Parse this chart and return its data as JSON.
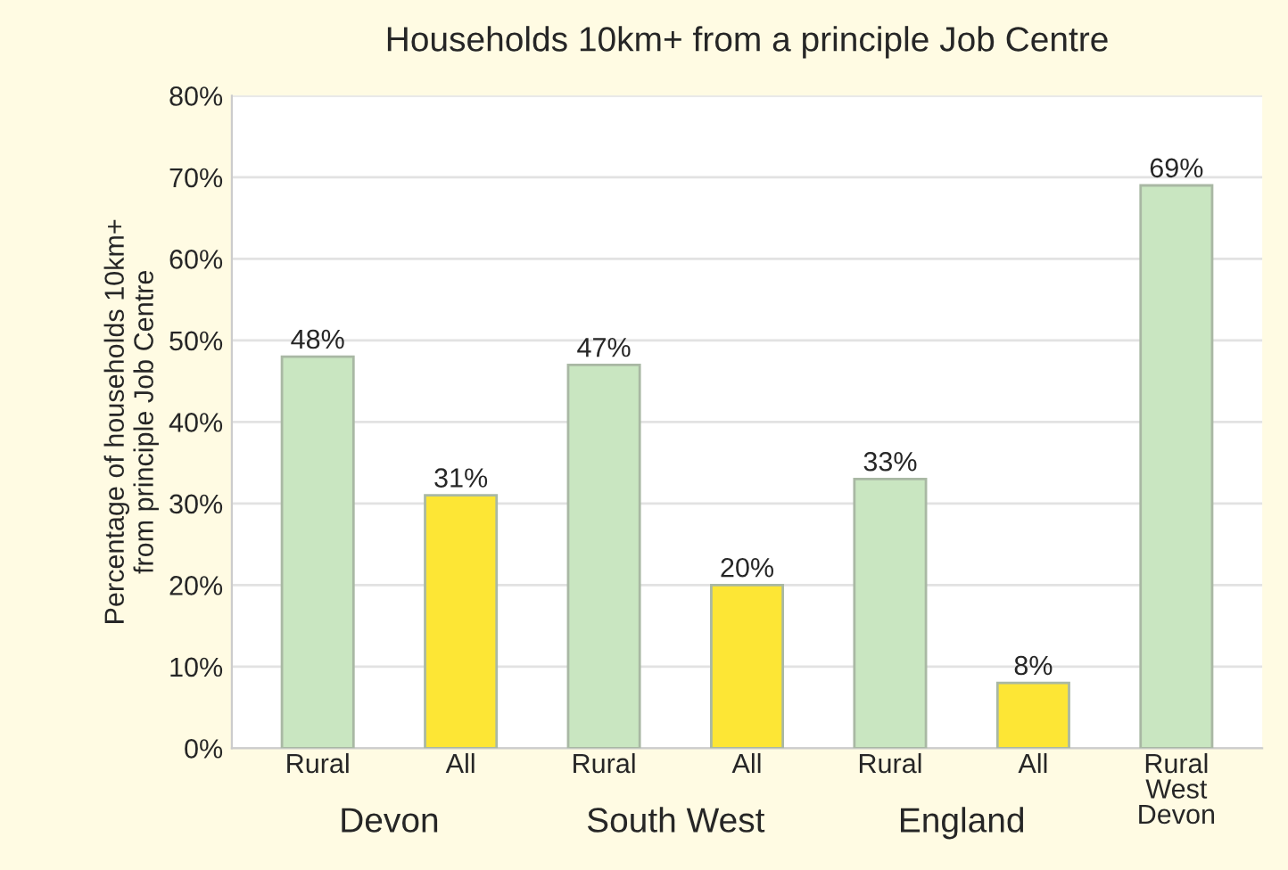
{
  "chart_data": {
    "type": "bar",
    "title": "Households 10km+ from a principle Job Centre",
    "ylabel": "Percentage of households 10km+\nfrom principle Job Centre",
    "categories": [
      "Rural",
      "All",
      "Rural",
      "All",
      "Rural",
      "All",
      "Rural\nWest\nDevon"
    ],
    "values": [
      48,
      31,
      47,
      20,
      33,
      8,
      69
    ],
    "colors": [
      "#c9e6c1",
      "#fde635",
      "#c9e6c1",
      "#fde635",
      "#c9e6c1",
      "#fde635",
      "#c9e6c1"
    ],
    "value_labels": [
      "48%",
      "31%",
      "47%",
      "20%",
      "33%",
      "8%",
      "69%"
    ],
    "annotations": [
      "Devon",
      "South West",
      "England"
    ],
    "ylim": [
      0,
      80
    ],
    "yticks": [
      {
        "value": 0,
        "label": "0%"
      },
      {
        "value": 10,
        "label": "10%"
      },
      {
        "value": 20,
        "label": "20%"
      },
      {
        "value": 30,
        "label": "30%"
      },
      {
        "value": 40,
        "label": "40%"
      },
      {
        "value": 50,
        "label": "50%"
      },
      {
        "value": 60,
        "label": "60%"
      },
      {
        "value": 70,
        "label": "70%"
      },
      {
        "value": 80,
        "label": "80%"
      }
    ],
    "grid": "y",
    "legend": false
  }
}
